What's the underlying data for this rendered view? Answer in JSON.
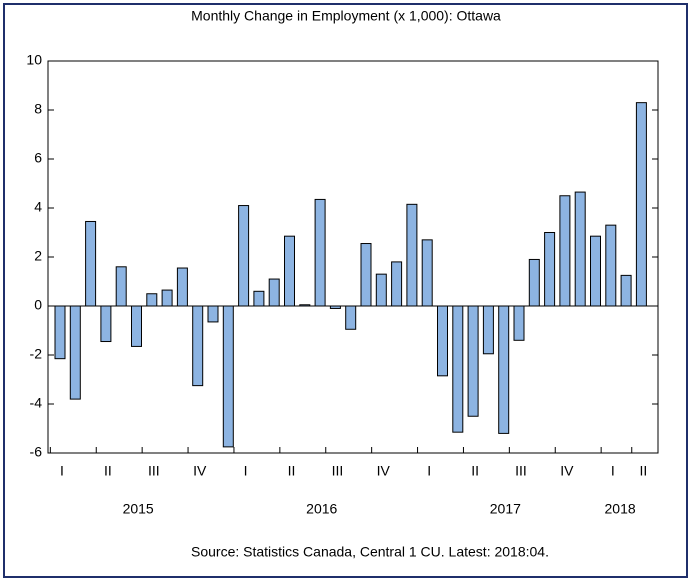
{
  "chart_data": {
    "type": "bar",
    "title": "Monthly Change in Employment (x 1,000): Ottawa",
    "source": "Source: Statistics Canada, Central 1 CU. Latest: 2018:04.",
    "categories": [
      "I",
      null,
      null,
      "II",
      null,
      null,
      "III",
      null,
      null,
      "IV",
      null,
      null,
      "I",
      null,
      null,
      "II",
      null,
      null,
      "III",
      null,
      null,
      "IV",
      null,
      null,
      "I",
      null,
      null,
      "II",
      null,
      null,
      "III",
      null,
      null,
      "IV",
      null,
      null,
      "I",
      null,
      "II"
    ],
    "years": [
      "2015",
      "2016",
      "2017",
      "2018"
    ],
    "values": [
      -2.15,
      -3.8,
      3.45,
      -1.45,
      1.6,
      -1.65,
      0.5,
      0.65,
      1.55,
      -3.25,
      -0.65,
      -5.75,
      4.1,
      0.6,
      1.1,
      2.85,
      0.05,
      4.35,
      -0.1,
      -0.95,
      2.55,
      1.3,
      1.8,
      4.15,
      2.7,
      -2.85,
      -5.15,
      -4.5,
      -1.95,
      -5.2,
      -1.4,
      1.9,
      3.0,
      4.5,
      4.65,
      2.85,
      3.3,
      1.25,
      8.3
    ],
    "color": "#8db4e2",
    "ylim": [
      -6,
      10
    ],
    "yticks": [
      -6,
      -4,
      -2,
      0,
      2,
      4,
      6,
      8,
      10
    ],
    "grid": false
  }
}
